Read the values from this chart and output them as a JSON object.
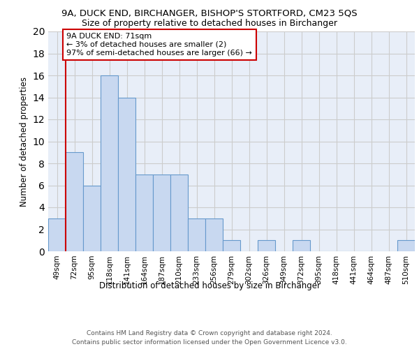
{
  "title_line1": "9A, DUCK END, BIRCHANGER, BISHOP'S STORTFORD, CM23 5QS",
  "title_line2": "Size of property relative to detached houses in Birchanger",
  "xlabel": "Distribution of detached houses by size in Birchanger",
  "ylabel": "Number of detached properties",
  "categories": [
    "49sqm",
    "72sqm",
    "95sqm",
    "118sqm",
    "141sqm",
    "164sqm",
    "187sqm",
    "210sqm",
    "233sqm",
    "256sqm",
    "279sqm",
    "302sqm",
    "326sqm",
    "349sqm",
    "372sqm",
    "395sqm",
    "418sqm",
    "441sqm",
    "464sqm",
    "487sqm",
    "510sqm"
  ],
  "values": [
    3,
    9,
    6,
    16,
    14,
    7,
    7,
    7,
    3,
    3,
    1,
    0,
    1,
    0,
    1,
    0,
    0,
    0,
    0,
    0,
    1
  ],
  "bar_color": "#c8d8f0",
  "bar_edge_color": "#6699cc",
  "grid_color": "#cccccc",
  "bg_color": "#e8eef8",
  "annotation_text": "9A DUCK END: 71sqm\n← 3% of detached houses are smaller (2)\n97% of semi-detached houses are larger (66) →",
  "annotation_box_color": "#ffffff",
  "annotation_box_edge": "#cc0000",
  "redline_color": "#cc0000",
  "ylim": [
    0,
    20
  ],
  "yticks": [
    0,
    2,
    4,
    6,
    8,
    10,
    12,
    14,
    16,
    18,
    20
  ],
  "footer_line1": "Contains HM Land Registry data © Crown copyright and database right 2024.",
  "footer_line2": "Contains public sector information licensed under the Open Government Licence v3.0."
}
